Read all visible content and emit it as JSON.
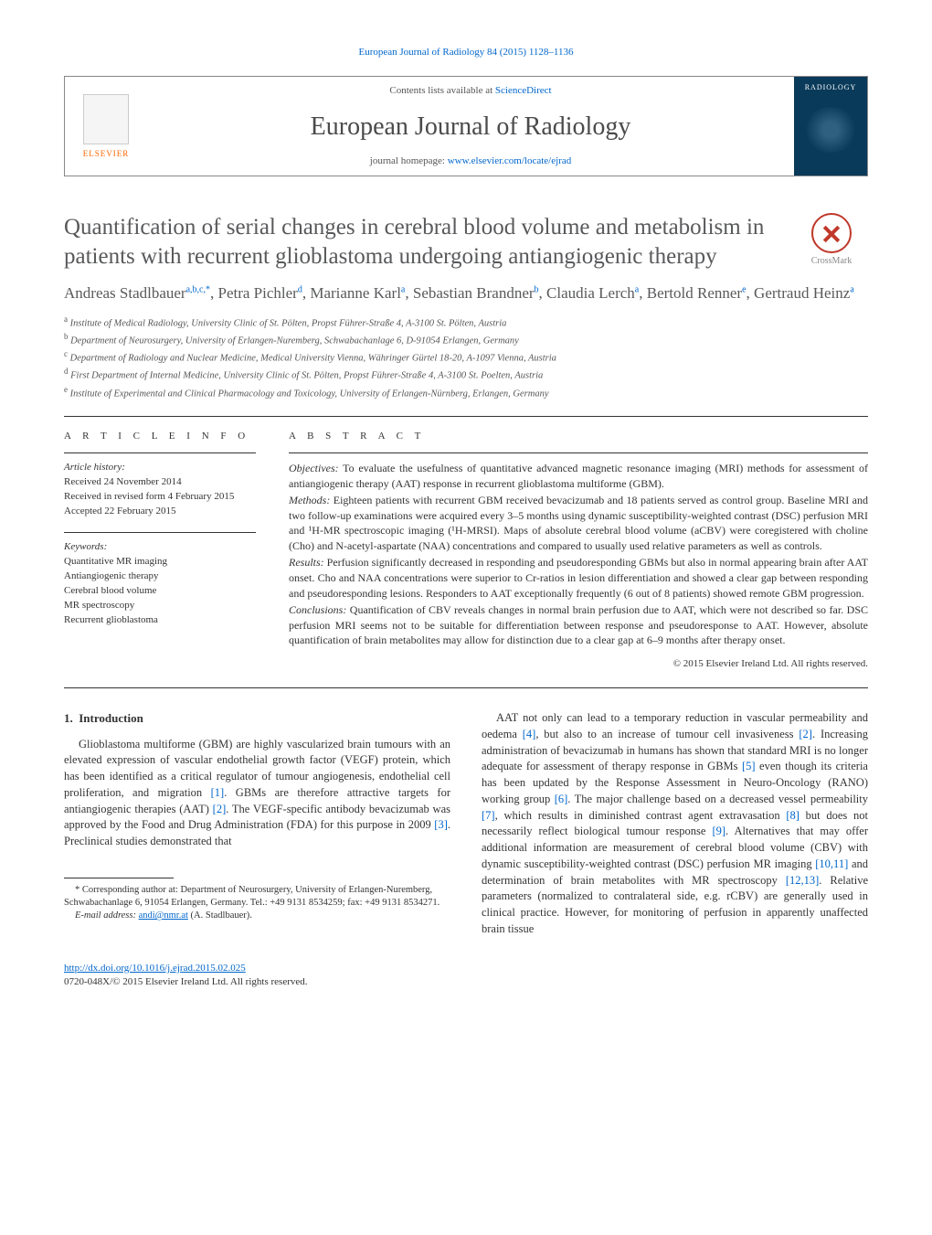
{
  "header": {
    "citation": "European Journal of Radiology 84 (2015) 1128–1136",
    "contents_prefix": "Contents lists available at ",
    "contents_link": "ScienceDirect",
    "journal_title": "European Journal of Radiology",
    "homepage_prefix": "journal homepage: ",
    "homepage_link": "www.elsevier.com/locate/ejrad",
    "elsevier": "ELSEVIER",
    "cover_label": "RADIOLOGY",
    "crossmark": "CrossMark"
  },
  "article": {
    "title": "Quantification of serial changes in cerebral blood volume and metabolism in patients with recurrent glioblastoma undergoing antiangiogenic therapy",
    "authors_html": "Andreas Stadlbauer<sup>a,b,c,*</sup>, Petra Pichler<sup>d</sup>, Marianne Karl<sup>a</sup>, Sebastian Brandner<sup>b</sup>, Claudia Lerch<sup>a</sup>, Bertold Renner<sup>e</sup>, Gertraud Heinz<sup>a</sup>",
    "affiliations": {
      "a": "Institute of Medical Radiology, University Clinic of St. Pölten, Propst Führer-Straße 4, A-3100 St. Pölten, Austria",
      "b": "Department of Neurosurgery, University of Erlangen-Nuremberg, Schwabachanlage 6, D-91054 Erlangen, Germany",
      "c": "Department of Radiology and Nuclear Medicine, Medical University Vienna, Währinger Gürtel 18-20, A-1097 Vienna, Austria",
      "d": "First Department of Internal Medicine, University Clinic of St. Pölten, Propst Führer-Straße 4, A-3100 St. Poelten, Austria",
      "e": "Institute of Experimental and Clinical Pharmacology and Toxicology, University of Erlangen-Nürnberg, Erlangen, Germany"
    }
  },
  "info": {
    "heading": "a r t i c l e   i n f o",
    "history_label": "Article history:",
    "received": "Received 24 November 2014",
    "revised": "Received in revised form 4 February 2015",
    "accepted": "Accepted 22 February 2015",
    "keywords_label": "Keywords:",
    "keywords": [
      "Quantitative MR imaging",
      "Antiangiogenic therapy",
      "Cerebral blood volume",
      "MR spectroscopy",
      "Recurrent glioblastoma"
    ]
  },
  "abstract": {
    "heading": "a b s t r a c t",
    "objectives_label": "Objectives:",
    "objectives": " To evaluate the usefulness of quantitative advanced magnetic resonance imaging (MRI) methods for assessment of antiangiogenic therapy (AAT) response in recurrent glioblastoma multiforme (GBM).",
    "methods_label": "Methods:",
    "methods": " Eighteen patients with recurrent GBM received bevacizumab and 18 patients served as control group. Baseline MRI and two follow-up examinations were acquired every 3–5 months using dynamic susceptibility-weighted contrast (DSC) perfusion MRI and ¹H-MR spectroscopic imaging (¹H-MRSI). Maps of absolute cerebral blood volume (aCBV) were coregistered with choline (Cho) and N-acetyl-aspartate (NAA) concentrations and compared to usually used relative parameters as well as controls.",
    "results_label": "Results:",
    "results": " Perfusion significantly decreased in responding and pseudoresponding GBMs but also in normal appearing brain after AAT onset. Cho and NAA concentrations were superior to Cr-ratios in lesion differentiation and showed a clear gap between responding and pseudoresponding lesions. Responders to AAT exceptionally frequently (6 out of 8 patients) showed remote GBM progression.",
    "conclusions_label": "Conclusions:",
    "conclusions": " Quantification of CBV reveals changes in normal brain perfusion due to AAT, which were not described so far. DSC perfusion MRI seems not to be suitable for differentiation between response and pseudoresponse to AAT. However, absolute quantification of brain metabolites may allow for distinction due to a clear gap at 6–9 months after therapy onset.",
    "copyright": "© 2015 Elsevier Ireland Ltd. All rights reserved."
  },
  "body": {
    "section_number": "1.",
    "section_title": "Introduction",
    "col1": "Glioblastoma multiforme (GBM) are highly vascularized brain tumours with an elevated expression of vascular endothelial growth factor (VEGF) protein, which has been identified as a critical regulator of tumour angiogenesis, endothelial cell proliferation, and migration [1]. GBMs are therefore attractive targets for antiangiogenic therapies (AAT) [2]. The VEGF-specific antibody bevacizumab was approved by the Food and Drug Administration (FDA) for this purpose in 2009 [3]. Preclinical studies demonstrated that",
    "col2": "AAT not only can lead to a temporary reduction in vascular permeability and oedema [4], but also to an increase of tumour cell invasiveness [2]. Increasing administration of bevacizumab in humans has shown that standard MRI is no longer adequate for assessment of therapy response in GBMs [5] even though its criteria has been updated by the Response Assessment in Neuro-Oncology (RANO) working group [6]. The major challenge based on a decreased vessel permeability [7], which results in diminished contrast agent extravasation [8] but does not necessarily reflect biological tumour response [9]. Alternatives that may offer additional information are measurement of cerebral blood volume (CBV) with dynamic susceptibility-weighted contrast (DSC) perfusion MR imaging [10,11] and determination of brain metabolites with MR spectroscopy [12,13]. Relative parameters (normalized to contralateral side, e.g. rCBV) are generally used in clinical practice. However, for monitoring of perfusion in apparently unaffected brain tissue",
    "refs": {
      "r1": "[1]",
      "r2": "[2]",
      "r3": "[3]",
      "r4": "[4]",
      "r5": "[5]",
      "r6": "[6]",
      "r7": "[7]",
      "r8": "[8]",
      "r9": "[9]",
      "r1011": "[10,11]",
      "r1213": "[12,13]"
    }
  },
  "footnotes": {
    "corr": "* Corresponding author at: Department of Neurosurgery, University of Erlangen-Nuremberg, Schwabachanlage 6, 91054 Erlangen, Germany. Tel.: +49 9131 8534259; fax: +49 9131 8534271.",
    "email_label": "E-mail address: ",
    "email": "andi@nmr.at",
    "email_suffix": " (A. Stadlbauer)."
  },
  "footer": {
    "doi": "http://dx.doi.org/10.1016/j.ejrad.2015.02.025",
    "issn_line": "0720-048X/© 2015 Elsevier Ireland Ltd. All rights reserved."
  },
  "colors": {
    "link": "#0066cc",
    "heading": "#58595b",
    "elsevier": "#ff6600",
    "cover_bg": "#0a3a5a"
  }
}
